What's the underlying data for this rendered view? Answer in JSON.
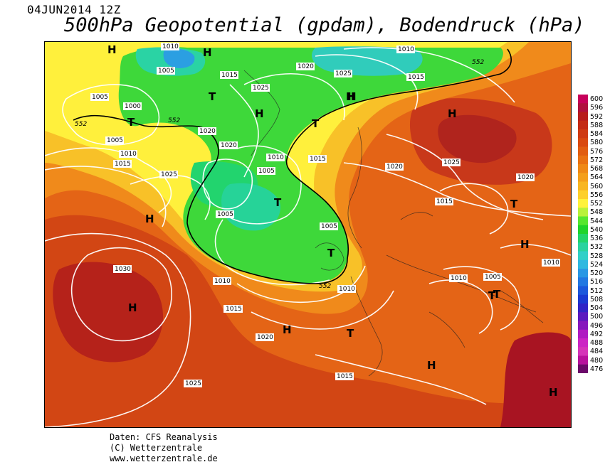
{
  "header": {
    "datetime": "04JUN2014 12Z",
    "title": "500hPa Geopotential (gpdam), Bodendruck (hPa)"
  },
  "legend": {
    "values": [
      "600",
      "596",
      "592",
      "588",
      "584",
      "580",
      "576",
      "572",
      "568",
      "564",
      "560",
      "556",
      "552",
      "548",
      "544",
      "540",
      "536",
      "532",
      "528",
      "524",
      "520",
      "516",
      "512",
      "508",
      "504",
      "500",
      "496",
      "492",
      "488",
      "484",
      "480",
      "476"
    ],
    "colors": [
      "#c7005a",
      "#b0103e",
      "#b81c1c",
      "#c42a14",
      "#cf3a12",
      "#d9490f",
      "#e15d10",
      "#e97212",
      "#ef8916",
      "#f49f1b",
      "#f8b622",
      "#fdd02c",
      "#fff23c",
      "#b8f23a",
      "#56e72f",
      "#1fd42b",
      "#22d56a",
      "#2ad39f",
      "#31d0c8",
      "#2fb8e0",
      "#2997e4",
      "#2278e2",
      "#1c58dc",
      "#1a3ad2",
      "#3024c6",
      "#5b19bf",
      "#8617bd",
      "#b01ac2",
      "#cc24c4",
      "#d634b9",
      "#b8129d",
      "#6b0a6a"
    ]
  },
  "map": {
    "pressure_labels": [
      "1010",
      "1005",
      "1015",
      "1020",
      "1025",
      "1005",
      "1000",
      "1005",
      "1010",
      "1015",
      "1025",
      "1020",
      "1025",
      "1010",
      "1005",
      "1015",
      "1010",
      "1005",
      "1005",
      "1020",
      "1015",
      "1030",
      "1010",
      "1015",
      "1020",
      "1010",
      "1005",
      "1010",
      "1015",
      "1025",
      "1020",
      "1025",
      "1015",
      "1020",
      "1010",
      "1015"
    ],
    "highs_lows": [
      "H",
      "H",
      "T",
      "H",
      "T",
      "H",
      "H",
      "T",
      "T",
      "T",
      "H",
      "T",
      "H",
      "T",
      "H",
      "T",
      "H",
      "H",
      "T",
      "H",
      "H"
    ],
    "contour_552_label": "552"
  },
  "credits": {
    "line1": "Daten: CFS Reanalysis",
    "line2": "(C) Wetterzentrale",
    "line3": "www.wetterzentrale.de"
  }
}
